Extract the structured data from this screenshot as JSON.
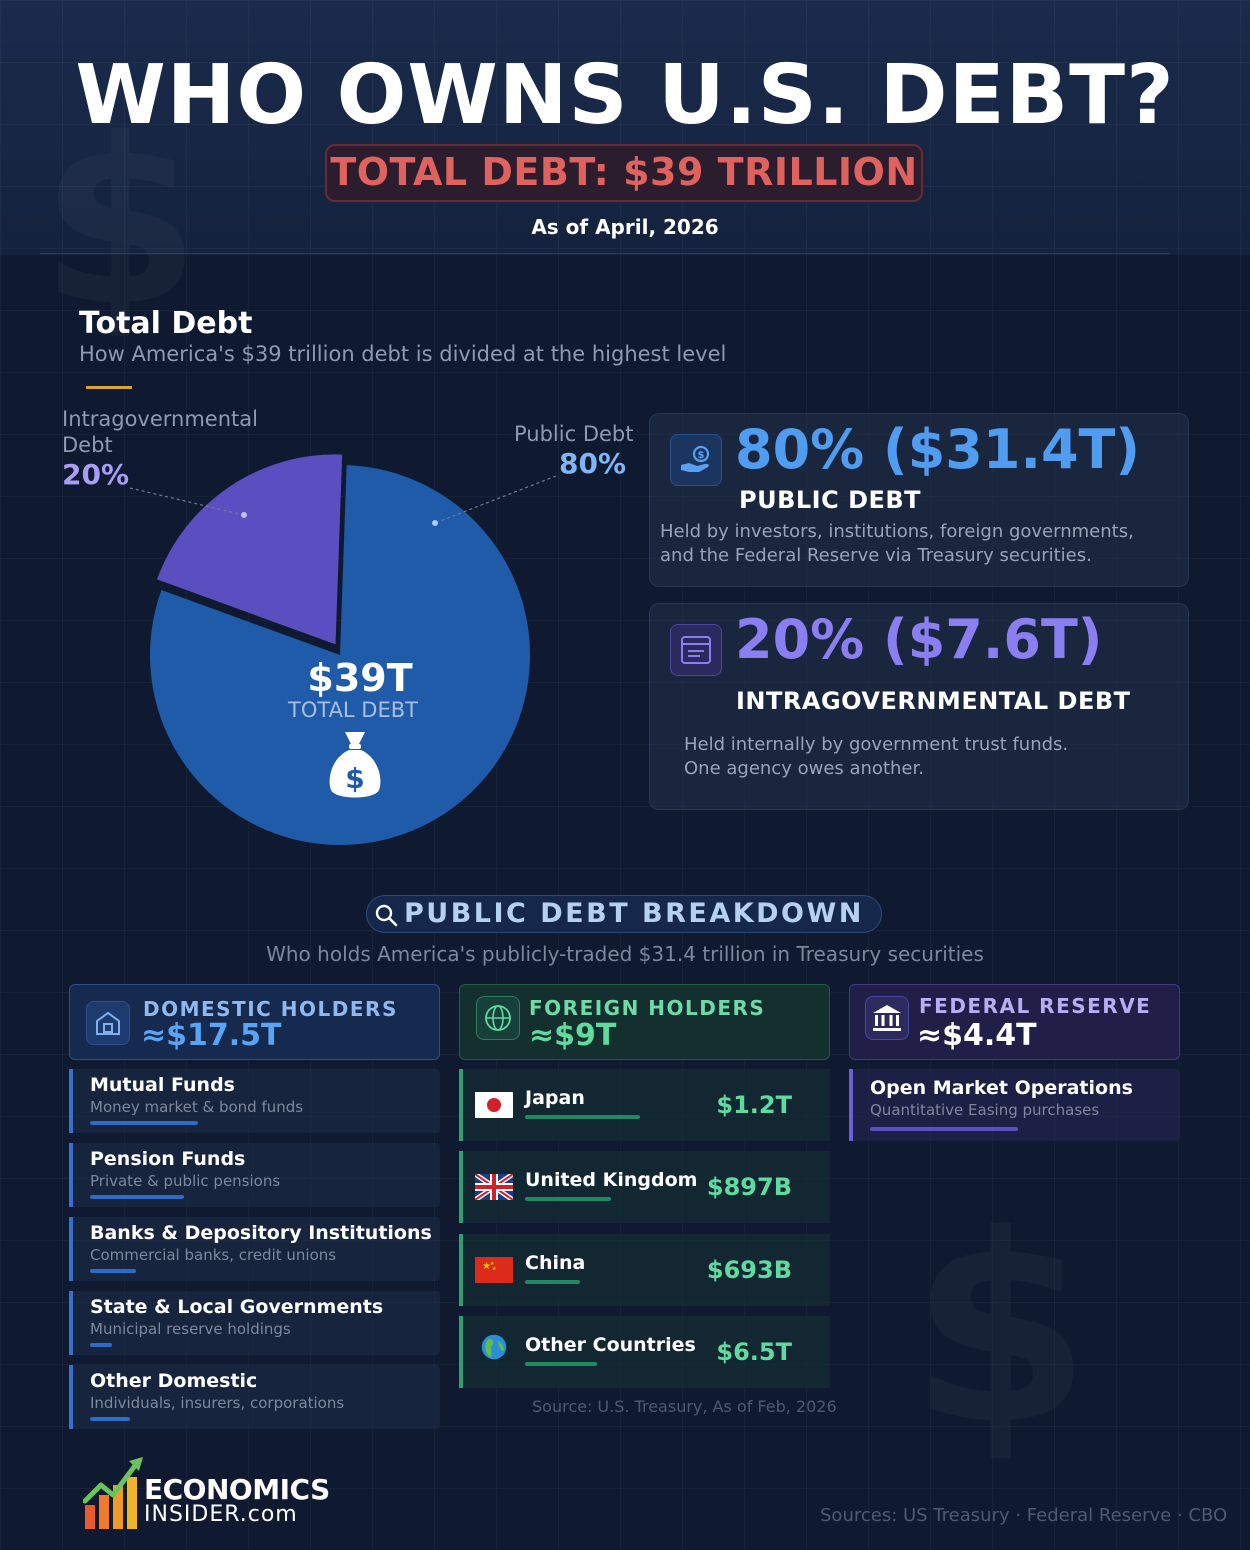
{
  "header": {
    "title": "WHO OWNS U.S. DEBT?",
    "total": "TOTAL DEBT: $39 TRILLION",
    "as_of": "As of April, 2026"
  },
  "total_section": {
    "title": "Total Debt",
    "subtitle": "How America's $39 trillion debt is divided at the highest level",
    "center_value": "$39T",
    "center_label": "TOTAL DEBT",
    "slice_labels": {
      "intra_name_line1": "Intragovernmental",
      "intra_name_line2": "Debt",
      "intra_pct": "20%",
      "public_name": "Public Debt",
      "public_pct": "80%"
    }
  },
  "chart_data": {
    "type": "pie",
    "title": "Total Debt",
    "slices": [
      {
        "label": "Public Debt",
        "value": 80,
        "color": "#1f5ba8"
      },
      {
        "label": "Intragovernmental Debt",
        "value": 20,
        "color": "#5a4ec0"
      }
    ]
  },
  "cards": {
    "public": {
      "value": "80% ($31.4T)",
      "heading": "PUBLIC DEBT",
      "desc_line1": "Held by investors, institutions, foreign governments,",
      "desc_line2": "and the Federal Reserve via Treasury securities.",
      "icon": "hand-coin-icon"
    },
    "intra": {
      "value": "20% ($7.6T)",
      "heading": "INTRAGOVERNMENTAL DEBT",
      "desc_line1": "Held internally by government trust funds.",
      "desc_line2": "One agency owes another.",
      "icon": "document-icon"
    }
  },
  "breakdown": {
    "title": "PUBLIC DEBT BREAKDOWN",
    "subtitle": "Who holds America's publicly-traded $31.4 trillion in Treasury securities",
    "domestic": {
      "title": "DOMESTIC HOLDERS",
      "value": "≈$17.5T",
      "items": [
        {
          "name": "Mutual Funds",
          "sub": "Money market & bond funds"
        },
        {
          "name": "Pension Funds",
          "sub": "Private & public pensions"
        },
        {
          "name": "Banks & Depository Institutions",
          "sub": "Commercial banks, credit unions"
        },
        {
          "name": "State & Local Governments",
          "sub": "Municipal reserve holdings"
        },
        {
          "name": "Other Domestic",
          "sub": "Individuals, insurers, corporations"
        }
      ]
    },
    "foreign": {
      "title": "FOREIGN HOLDERS",
      "value": "≈$9T",
      "items": [
        {
          "name": "Japan",
          "value": "$1.2T"
        },
        {
          "name": "United Kingdom",
          "value": "$897B"
        },
        {
          "name": "China",
          "value": "$693B"
        },
        {
          "name": "Other Countries",
          "value": "$6.5T"
        }
      ],
      "source": "Source: U.S. Treasury, As of Feb, 2026"
    },
    "fed": {
      "title": "FEDERAL RESERVE",
      "value": "≈$4.4T",
      "items": [
        {
          "name": "Open Market Operations",
          "sub": "Quantitative Easing purchases"
        }
      ]
    }
  },
  "footer": {
    "logo_line1": "ECONOMICS",
    "logo_line2": "INSIDER.com",
    "sources": "Sources: US Treasury · Federal Reserve · CBO"
  },
  "colors": {
    "public": "#1f5ba8",
    "intra": "#5a4ec0",
    "accent_red": "#e0625e",
    "public_text": "#4f9cf0",
    "intra_text": "#8a7ef0",
    "foreign_green": "#5fdba0"
  }
}
